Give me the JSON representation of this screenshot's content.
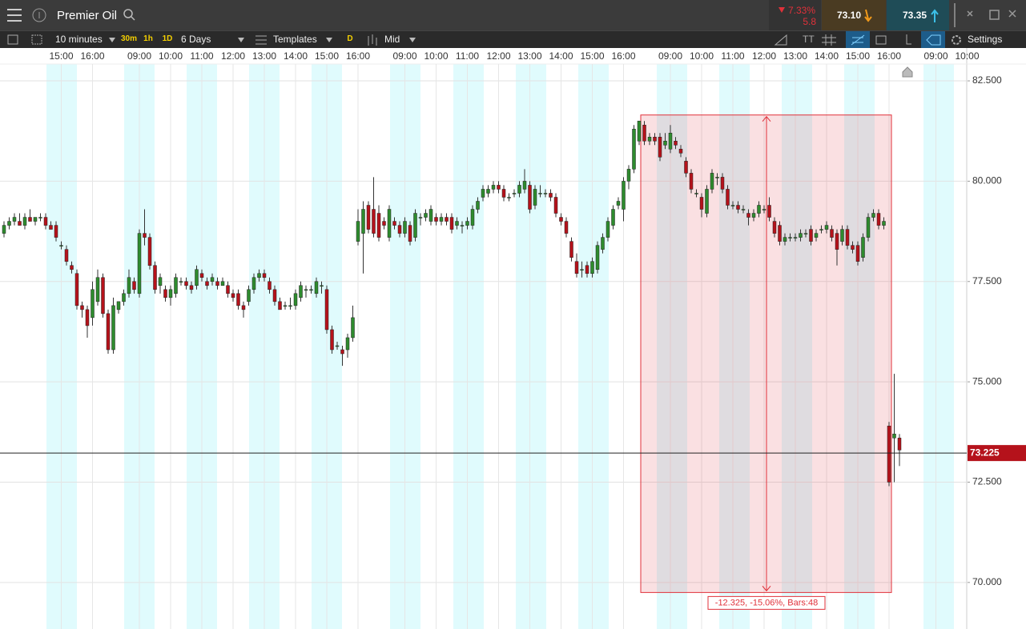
{
  "header": {
    "title": "Premier Oil",
    "change": "7.33%",
    "change_points": "5.8",
    "sell": "73.10",
    "buy": "73.35"
  },
  "toolbar": {
    "interval": "10 minutes",
    "quick_intervals": [
      "30m",
      "1h",
      "1D"
    ],
    "range": "6 Days",
    "templates": "Templates",
    "d_button": "D",
    "price_type": "Mid",
    "text_tool": "TT",
    "settings": "Settings"
  },
  "chart_data": {
    "type": "candlestick",
    "up_color": "#2e8b2e",
    "down_color": "#b5121b",
    "band_color": "#e0fbfd",
    "grid": true,
    "categories": [
      null,
      null,
      null,
      null,
      null,
      null,
      null,
      null,
      null,
      null,
      null,
      "15:00",
      null,
      null,
      null,
      null,
      null,
      "16:00",
      null,
      null,
      null,
      null,
      null,
      null,
      null,
      null,
      "09:00",
      null,
      null,
      null,
      null,
      null,
      "10:00",
      null,
      null,
      null,
      null,
      null,
      "11:00",
      null,
      null,
      null,
      null,
      null,
      "12:00",
      null,
      null,
      null,
      null,
      null,
      "13:00",
      null,
      null,
      null,
      null,
      null,
      "14:00",
      null,
      null,
      null,
      null,
      null,
      "15:00",
      null,
      null,
      null,
      null,
      null,
      "16:00",
      null,
      null,
      null,
      null,
      null,
      null,
      null,
      null,
      "09:00",
      null,
      null,
      null,
      null,
      null,
      "10:00",
      null,
      null,
      null,
      null,
      null,
      "11:00",
      null,
      null,
      null,
      null,
      null,
      "12:00",
      null,
      null,
      null,
      null,
      null,
      "13:00",
      null,
      null,
      null,
      null,
      null,
      "14:00",
      null,
      null,
      null,
      null,
      null,
      "15:00",
      null,
      null,
      null,
      null,
      null,
      "16:00",
      null,
      null,
      null,
      null,
      null,
      null,
      null,
      null,
      "09:00",
      null,
      null,
      null,
      null,
      null,
      "10:00",
      null,
      null,
      null,
      null,
      null,
      "11:00",
      null,
      null,
      null,
      null,
      null,
      "12:00",
      null,
      null,
      null,
      null,
      null,
      "13:00",
      null,
      null,
      null,
      null,
      null,
      "14:00",
      null,
      null,
      null,
      null,
      null,
      "15:00",
      null,
      null,
      null,
      null,
      null,
      "16:00",
      null,
      null,
      null,
      null,
      null,
      null,
      null,
      null,
      "09:00",
      null,
      null,
      null,
      null,
      null,
      "10:00"
    ],
    "ohlc": [
      [
        78.7,
        79.0,
        78.6,
        78.9
      ],
      [
        78.9,
        79.1,
        78.8,
        79.0
      ],
      [
        79.0,
        79.2,
        78.9,
        79.1
      ],
      [
        79.0,
        79.2,
        78.9,
        78.9
      ],
      [
        78.9,
        79.2,
        78.8,
        79.1
      ],
      [
        79.1,
        79.3,
        79.0,
        79.0
      ],
      [
        79.0,
        79.1,
        78.9,
        79.1
      ],
      [
        79.1,
        79.2,
        79.0,
        79.1
      ],
      [
        79.1,
        79.2,
        78.8,
        78.9
      ],
      [
        78.9,
        79.0,
        78.8,
        78.8
      ],
      [
        78.9,
        79.0,
        78.5,
        78.6
      ],
      [
        78.4,
        78.5,
        78.3,
        78.4
      ],
      [
        78.3,
        78.4,
        77.9,
        78.0
      ],
      [
        77.9,
        78.0,
        77.7,
        77.8
      ],
      [
        77.7,
        77.8,
        76.8,
        76.9
      ],
      [
        76.9,
        77.0,
        76.6,
        76.8
      ],
      [
        76.8,
        76.9,
        76.1,
        76.4
      ],
      [
        76.6,
        77.5,
        76.4,
        77.3
      ],
      [
        77.0,
        77.8,
        76.9,
        77.6
      ],
      [
        77.6,
        77.7,
        76.6,
        76.7
      ],
      [
        76.7,
        76.8,
        75.7,
        75.8
      ],
      [
        75.8,
        77.1,
        75.7,
        76.9
      ],
      [
        76.8,
        77.0,
        76.7,
        77.0
      ],
      [
        77.0,
        77.3,
        76.9,
        77.2
      ],
      [
        77.2,
        77.8,
        77.1,
        77.6
      ],
      [
        77.5,
        77.6,
        77.2,
        77.3
      ],
      [
        77.2,
        78.8,
        77.1,
        78.7
      ],
      [
        78.7,
        79.3,
        78.4,
        78.6
      ],
      [
        78.6,
        78.7,
        77.8,
        77.9
      ],
      [
        77.9,
        78.0,
        77.2,
        77.3
      ],
      [
        77.4,
        77.7,
        77.2,
        77.6
      ],
      [
        77.3,
        77.4,
        77.0,
        77.1
      ],
      [
        77.1,
        77.4,
        76.9,
        77.3
      ],
      [
        77.2,
        77.7,
        77.1,
        77.6
      ],
      [
        77.5,
        77.6,
        77.4,
        77.5
      ],
      [
        77.5,
        77.6,
        77.3,
        77.4
      ],
      [
        77.4,
        77.5,
        77.2,
        77.3
      ],
      [
        77.4,
        77.9,
        77.3,
        77.8
      ],
      [
        77.7,
        77.8,
        77.5,
        77.6
      ],
      [
        77.5,
        77.6,
        77.3,
        77.4
      ],
      [
        77.5,
        77.7,
        77.4,
        77.6
      ],
      [
        77.5,
        77.6,
        77.3,
        77.4
      ],
      [
        77.4,
        77.6,
        77.4,
        77.5
      ],
      [
        77.4,
        77.5,
        77.1,
        77.2
      ],
      [
        77.2,
        77.3,
        77.0,
        77.1
      ],
      [
        77.2,
        77.3,
        76.8,
        76.9
      ],
      [
        76.9,
        77.0,
        76.6,
        76.8
      ],
      [
        77.0,
        77.4,
        76.9,
        77.3
      ],
      [
        77.3,
        77.7,
        77.2,
        77.6
      ],
      [
        77.6,
        77.8,
        77.5,
        77.7
      ],
      [
        77.7,
        77.8,
        77.5,
        77.6
      ],
      [
        77.5,
        77.6,
        77.2,
        77.3
      ],
      [
        77.3,
        77.4,
        76.9,
        77.0
      ],
      [
        77.0,
        77.1,
        76.8,
        76.8
      ],
      [
        76.9,
        77.0,
        76.8,
        76.9
      ],
      [
        76.9,
        77.1,
        76.8,
        76.9
      ],
      [
        76.9,
        77.3,
        76.8,
        77.2
      ],
      [
        77.1,
        77.5,
        77.0,
        77.4
      ],
      [
        77.3,
        77.4,
        77.1,
        77.3
      ],
      [
        77.3,
        77.4,
        77.2,
        77.3
      ],
      [
        77.2,
        77.6,
        77.1,
        77.5
      ],
      [
        77.4,
        77.5,
        77.2,
        77.4
      ],
      [
        77.3,
        77.4,
        76.2,
        76.3
      ],
      [
        76.3,
        76.4,
        75.7,
        75.8
      ],
      [
        75.9,
        76.0,
        75.8,
        75.9
      ],
      [
        75.8,
        75.9,
        75.4,
        75.7
      ],
      [
        75.8,
        76.2,
        75.6,
        76.1
      ],
      [
        76.1,
        76.9,
        76.0,
        76.6
      ],
      [
        78.5,
        79.3,
        78.4,
        79.0
      ],
      [
        78.7,
        79.5,
        77.7,
        79.3
      ],
      [
        79.4,
        79.5,
        78.7,
        78.8
      ],
      [
        79.3,
        80.1,
        78.6,
        78.7
      ],
      [
        79.2,
        79.4,
        78.5,
        78.6
      ],
      [
        79.0,
        79.1,
        78.8,
        78.9
      ],
      [
        78.6,
        79.4,
        78.5,
        79.3
      ],
      [
        79.0,
        79.1,
        78.8,
        78.9
      ],
      [
        78.9,
        79.0,
        78.6,
        78.7
      ],
      [
        78.7,
        79.1,
        78.6,
        79.0
      ],
      [
        78.9,
        79.0,
        78.4,
        78.5
      ],
      [
        78.6,
        79.3,
        78.5,
        79.2
      ],
      [
        79.1,
        79.2,
        78.9,
        79.1
      ],
      [
        79.1,
        79.3,
        79.0,
        79.2
      ],
      [
        79.0,
        79.4,
        78.9,
        79.3
      ],
      [
        79.1,
        79.2,
        78.9,
        79.0
      ],
      [
        79.0,
        79.2,
        78.9,
        79.1
      ],
      [
        79.1,
        79.2,
        78.9,
        79.0
      ],
      [
        79.1,
        79.2,
        78.7,
        78.8
      ],
      [
        78.9,
        79.1,
        78.8,
        79.0
      ],
      [
        78.9,
        79.0,
        78.7,
        78.9
      ],
      [
        78.9,
        79.1,
        78.8,
        79.0
      ],
      [
        78.9,
        79.4,
        78.8,
        79.3
      ],
      [
        79.3,
        79.6,
        79.2,
        79.5
      ],
      [
        79.6,
        79.9,
        79.5,
        79.8
      ],
      [
        79.7,
        79.9,
        79.6,
        79.8
      ],
      [
        79.8,
        80.0,
        79.7,
        79.9
      ],
      [
        79.9,
        80.0,
        79.7,
        79.8
      ],
      [
        79.8,
        79.9,
        79.5,
        79.6
      ],
      [
        79.6,
        79.7,
        79.5,
        79.6
      ],
      [
        79.7,
        79.8,
        79.6,
        79.7
      ],
      [
        79.7,
        80.0,
        79.6,
        79.9
      ],
      [
        79.8,
        80.3,
        79.7,
        80.0
      ],
      [
        79.9,
        80.0,
        79.2,
        79.3
      ],
      [
        79.4,
        79.9,
        79.3,
        79.8
      ],
      [
        79.7,
        79.9,
        79.6,
        79.7
      ],
      [
        79.7,
        79.8,
        79.6,
        79.7
      ],
      [
        79.7,
        79.8,
        79.5,
        79.6
      ],
      [
        79.6,
        79.7,
        79.1,
        79.2
      ],
      [
        79.1,
        79.2,
        78.9,
        79.0
      ],
      [
        79.0,
        79.1,
        78.6,
        78.7
      ],
      [
        78.5,
        78.6,
        78.0,
        78.1
      ],
      [
        78.0,
        78.2,
        77.6,
        77.7
      ],
      [
        77.8,
        78.0,
        77.6,
        77.8
      ],
      [
        77.9,
        78.0,
        77.6,
        77.7
      ],
      [
        77.7,
        78.1,
        77.6,
        78.0
      ],
      [
        77.8,
        78.5,
        77.7,
        78.4
      ],
      [
        78.3,
        78.7,
        78.2,
        78.6
      ],
      [
        78.6,
        79.1,
        78.5,
        79.0
      ],
      [
        78.9,
        79.4,
        78.8,
        79.3
      ],
      [
        79.4,
        79.6,
        79.3,
        79.5
      ],
      [
        79.3,
        80.1,
        79.0,
        80.0
      ],
      [
        80.0,
        80.4,
        79.8,
        80.3
      ],
      [
        80.3,
        81.4,
        80.2,
        81.3
      ],
      [
        81.0,
        81.5,
        80.9,
        81.5
      ],
      [
        81.4,
        81.5,
        80.9,
        81.0
      ],
      [
        81.0,
        81.2,
        80.9,
        81.1
      ],
      [
        81.1,
        81.2,
        80.9,
        81.0
      ],
      [
        81.1,
        81.2,
        80.5,
        80.6
      ],
      [
        80.9,
        81.2,
        80.8,
        81.0
      ],
      [
        80.8,
        81.4,
        80.7,
        81.2
      ],
      [
        81.0,
        81.1,
        80.8,
        80.9
      ],
      [
        80.8,
        80.9,
        80.6,
        80.7
      ],
      [
        80.5,
        80.6,
        80.1,
        80.2
      ],
      [
        80.2,
        80.3,
        79.7,
        79.8
      ],
      [
        79.7,
        79.8,
        79.6,
        79.7
      ],
      [
        79.6,
        79.7,
        79.1,
        79.3
      ],
      [
        79.2,
        79.9,
        79.1,
        79.8
      ],
      [
        79.8,
        80.3,
        79.7,
        80.2
      ],
      [
        80.1,
        80.2,
        79.9,
        80.1
      ],
      [
        80.1,
        80.2,
        79.7,
        79.8
      ],
      [
        79.8,
        79.9,
        79.3,
        79.4
      ],
      [
        79.4,
        79.5,
        79.3,
        79.4
      ],
      [
        79.4,
        79.5,
        79.2,
        79.3
      ],
      [
        79.3,
        79.4,
        79.2,
        79.3
      ],
      [
        79.2,
        79.3,
        78.9,
        79.1
      ],
      [
        79.1,
        79.3,
        79.0,
        79.2
      ],
      [
        79.2,
        79.5,
        79.1,
        79.4
      ],
      [
        79.3,
        79.4,
        79.2,
        79.3
      ],
      [
        79.4,
        79.6,
        79.0,
        79.1
      ],
      [
        79.0,
        79.1,
        78.6,
        78.7
      ],
      [
        78.9,
        79.0,
        78.4,
        78.5
      ],
      [
        78.5,
        78.7,
        78.4,
        78.6
      ],
      [
        78.6,
        78.7,
        78.5,
        78.6
      ],
      [
        78.6,
        78.7,
        78.5,
        78.6
      ],
      [
        78.6,
        78.8,
        78.5,
        78.7
      ],
      [
        78.7,
        78.8,
        78.6,
        78.7
      ],
      [
        78.8,
        78.9,
        78.4,
        78.5
      ],
      [
        78.6,
        78.8,
        78.5,
        78.7
      ],
      [
        78.8,
        78.9,
        78.7,
        78.8
      ],
      [
        78.8,
        79.0,
        78.7,
        78.9
      ],
      [
        78.8,
        78.9,
        78.5,
        78.6
      ],
      [
        78.7,
        78.8,
        77.9,
        78.3
      ],
      [
        78.5,
        78.9,
        78.4,
        78.8
      ],
      [
        78.8,
        78.9,
        78.3,
        78.4
      ],
      [
        78.4,
        78.5,
        78.2,
        78.3
      ],
      [
        78.4,
        78.5,
        77.9,
        78.0
      ],
      [
        78.1,
        78.7,
        78.0,
        78.6
      ],
      [
        78.6,
        79.2,
        78.5,
        79.1
      ],
      [
        79.1,
        79.3,
        79.0,
        79.2
      ],
      [
        79.2,
        79.3,
        78.8,
        78.9
      ],
      [
        78.9,
        79.1,
        78.8,
        79.0
      ],
      [
        73.9,
        74.0,
        72.4,
        72.5
      ],
      [
        73.6,
        75.2,
        72.5,
        73.7
      ],
      [
        73.6,
        73.7,
        72.9,
        73.3
      ],
      null,
      null,
      null,
      null,
      null,
      null,
      null,
      null,
      null,
      null,
      null,
      null,
      null
    ],
    "ylim": [
      68.92,
      82.92
    ],
    "yticks": [
      {
        "value": 70,
        "label": "70.000"
      },
      {
        "value": 72.5,
        "label": "72.500"
      },
      {
        "value": 75,
        "label": "75.000"
      },
      {
        "value": 77.5,
        "label": "77.500"
      },
      {
        "value": 80,
        "label": "80.000"
      },
      {
        "value": 82.5,
        "label": "82.500"
      }
    ],
    "last_price": 73.225,
    "last_price_color": "#b5121b",
    "measure": {
      "label": "-12.325, -15.06%, Bars:48",
      "range": [
        69.75,
        81.65
      ],
      "color": "#e0313a"
    }
  }
}
